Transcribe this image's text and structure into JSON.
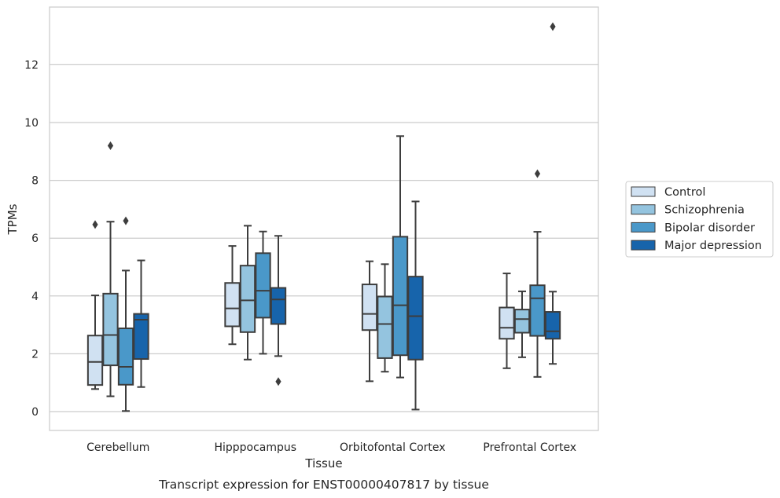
{
  "chart_data": {
    "type": "box",
    "title": "",
    "caption": "Transcript expression for ENST00000407817 by tissue",
    "xlabel": "Tissue",
    "ylabel": "TPMs",
    "ylim": [
      -0.65,
      13.9
    ],
    "yticks": [
      0,
      2,
      4,
      6,
      8,
      10,
      12
    ],
    "grid": "horizontal",
    "legend_position": "right",
    "categories": [
      "Cerebellum",
      "Hipppocampus",
      "Orbitofontal Cortex",
      "Prefrontal Cortex"
    ],
    "series": [
      {
        "name": "Control",
        "color": "#d0e1f2",
        "boxes": [
          {
            "whislo": 0.78,
            "q1": 0.92,
            "med": 1.72,
            "q3": 2.63,
            "whishi": 4.02,
            "fliers": [
              6.47
            ]
          },
          {
            "whislo": 2.33,
            "q1": 2.95,
            "med": 3.57,
            "q3": 4.45,
            "whishi": 5.73,
            "fliers": []
          },
          {
            "whislo": 1.05,
            "q1": 2.82,
            "med": 3.38,
            "q3": 4.4,
            "whishi": 5.2,
            "fliers": []
          },
          {
            "whislo": 1.5,
            "q1": 2.52,
            "med": 2.9,
            "q3": 3.6,
            "whishi": 4.78,
            "fliers": []
          }
        ]
      },
      {
        "name": "Schizophrenia",
        "color": "#94c4df",
        "boxes": [
          {
            "whislo": 0.53,
            "q1": 1.6,
            "med": 2.65,
            "q3": 4.08,
            "whishi": 6.57,
            "fliers": [
              9.2
            ]
          },
          {
            "whislo": 1.8,
            "q1": 2.75,
            "med": 3.85,
            "q3": 5.05,
            "whishi": 6.43,
            "fliers": []
          },
          {
            "whislo": 1.38,
            "q1": 1.85,
            "med": 3.03,
            "q3": 3.98,
            "whishi": 5.1,
            "fliers": []
          },
          {
            "whislo": 1.88,
            "q1": 2.73,
            "med": 3.2,
            "q3": 3.53,
            "whishi": 4.16,
            "fliers": []
          }
        ]
      },
      {
        "name": "Bipolar disorder",
        "color": "#4a98c9",
        "boxes": [
          {
            "whislo": 0.02,
            "q1": 0.93,
            "med": 1.55,
            "q3": 2.88,
            "whishi": 4.88,
            "fliers": [
              6.6
            ]
          },
          {
            "whislo": 2.0,
            "q1": 3.25,
            "med": 4.18,
            "q3": 5.48,
            "whishi": 6.23,
            "fliers": []
          },
          {
            "whislo": 1.18,
            "q1": 1.95,
            "med": 3.68,
            "q3": 6.05,
            "whishi": 9.53,
            "fliers": []
          },
          {
            "whislo": 1.2,
            "q1": 2.62,
            "med": 3.92,
            "q3": 4.37,
            "whishi": 6.22,
            "fliers": [
              8.23
            ]
          }
        ]
      },
      {
        "name": "Major depression",
        "color": "#1764ab",
        "boxes": [
          {
            "whislo": 0.85,
            "q1": 1.82,
            "med": 3.18,
            "q3": 3.38,
            "whishi": 5.23,
            "fliers": []
          },
          {
            "whislo": 1.92,
            "q1": 3.03,
            "med": 3.88,
            "q3": 4.28,
            "whishi": 6.08,
            "fliers": [
              1.04
            ]
          },
          {
            "whislo": 0.07,
            "q1": 1.8,
            "med": 3.3,
            "q3": 4.67,
            "whishi": 7.27,
            "fliers": []
          },
          {
            "whislo": 1.65,
            "q1": 2.52,
            "med": 2.78,
            "q3": 3.45,
            "whishi": 4.15,
            "fliers": [
              13.32
            ]
          }
        ]
      }
    ]
  }
}
